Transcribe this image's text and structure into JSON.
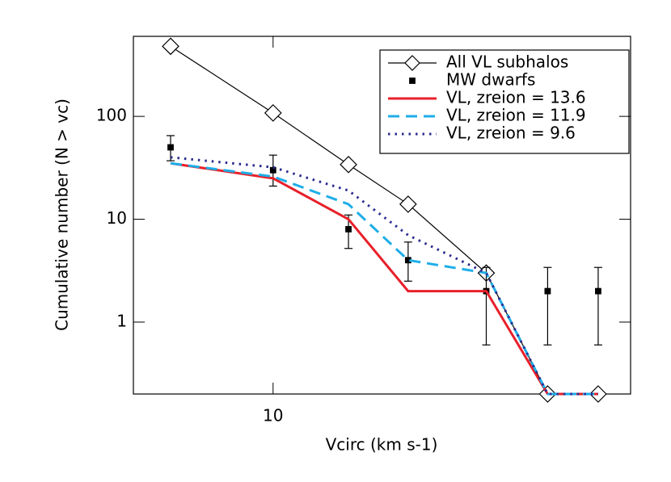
{
  "chart_data": {
    "type": "line",
    "x_label": "Vcirc (km s-1)",
    "y_label": "Cumulative number (N > vc)",
    "x": [
      7,
      10,
      13,
      16,
      21,
      26,
      31
    ],
    "xlim": [
      6.15,
      34.7
    ],
    "ylim": [
      0.2,
      600
    ],
    "xticks": [
      10
    ],
    "yticks": [
      1,
      10,
      100
    ],
    "log_x": true,
    "log_y": true,
    "legend": "upper right",
    "series": [
      {
        "name": "All VL subhalos",
        "color": "#000000",
        "linestyle": "solid",
        "marker": "diamond",
        "values": [
          480,
          108,
          34,
          14,
          3,
          0.2,
          0.2
        ]
      },
      {
        "name": "MW dwarfs",
        "color": "#000000",
        "linestyle": "none",
        "marker": "square",
        "values": [
          50,
          30,
          8,
          4,
          2,
          2,
          2
        ],
        "lower": [
          37,
          21,
          5.2,
          2.5,
          0.6,
          0.6,
          0.6
        ],
        "upper": [
          65,
          42,
          11,
          6,
          3.4,
          3.4,
          3.4
        ]
      },
      {
        "name": "VL, zreion = 13.6",
        "color": "#e8202a",
        "linestyle": "solid",
        "values": [
          35,
          25,
          10,
          2,
          2,
          0.2,
          0.2
        ]
      },
      {
        "name": "VL, zreion = 11.9",
        "color": "#1eaee8",
        "linestyle": "dashed",
        "values": [
          35,
          26,
          14,
          4,
          3,
          0.2,
          0.2
        ]
      },
      {
        "name": "VL, zreion = 9.6",
        "color": "#2b2b8f",
        "linestyle": "dotted",
        "values": [
          40,
          32,
          19,
          7,
          3,
          0.2,
          0.2
        ]
      }
    ]
  }
}
